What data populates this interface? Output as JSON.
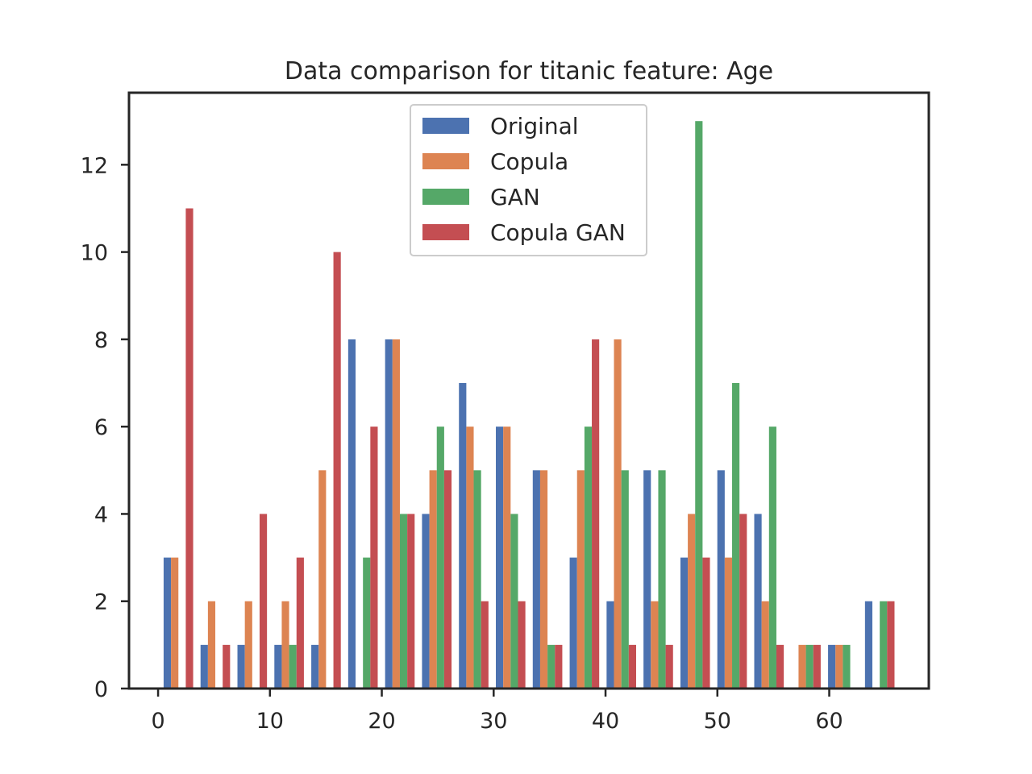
{
  "chart_data": {
    "type": "bar",
    "title": "Data comparison for titanic feature: Age",
    "xlabel": "",
    "ylabel": "",
    "xlim": [
      -2.6,
      68.9
    ],
    "ylim": [
      0,
      13.65
    ],
    "xticks": [
      0,
      10,
      20,
      30,
      40,
      50,
      60
    ],
    "yticks": [
      0,
      2,
      4,
      6,
      8,
      10,
      12
    ],
    "grid": false,
    "legend": "top-center",
    "bin_start": 0.0,
    "bin_width": 3.3,
    "series": [
      {
        "name": "Original",
        "color": "#4c72b0",
        "values": [
          3,
          1,
          1,
          1,
          1,
          8,
          8,
          4,
          7,
          6,
          5,
          3,
          2,
          5,
          3,
          5,
          4,
          0,
          1,
          2
        ]
      },
      {
        "name": "Copula",
        "color": "#dd8452",
        "values": [
          3,
          2,
          2,
          2,
          5,
          0,
          8,
          5,
          6,
          6,
          5,
          5,
          8,
          2,
          4,
          3,
          2,
          1,
          1,
          0
        ]
      },
      {
        "name": "GAN",
        "color": "#55a868",
        "values": [
          0,
          0,
          0,
          1,
          0,
          3,
          4,
          6,
          5,
          4,
          1,
          6,
          5,
          5,
          13,
          7,
          6,
          1,
          1,
          2
        ]
      },
      {
        "name": "Copula GAN",
        "color": "#c44e52",
        "values": [
          11,
          1,
          4,
          3,
          10,
          6,
          4,
          5,
          2,
          2,
          1,
          8,
          1,
          1,
          3,
          4,
          1,
          1,
          0,
          2
        ]
      }
    ]
  }
}
